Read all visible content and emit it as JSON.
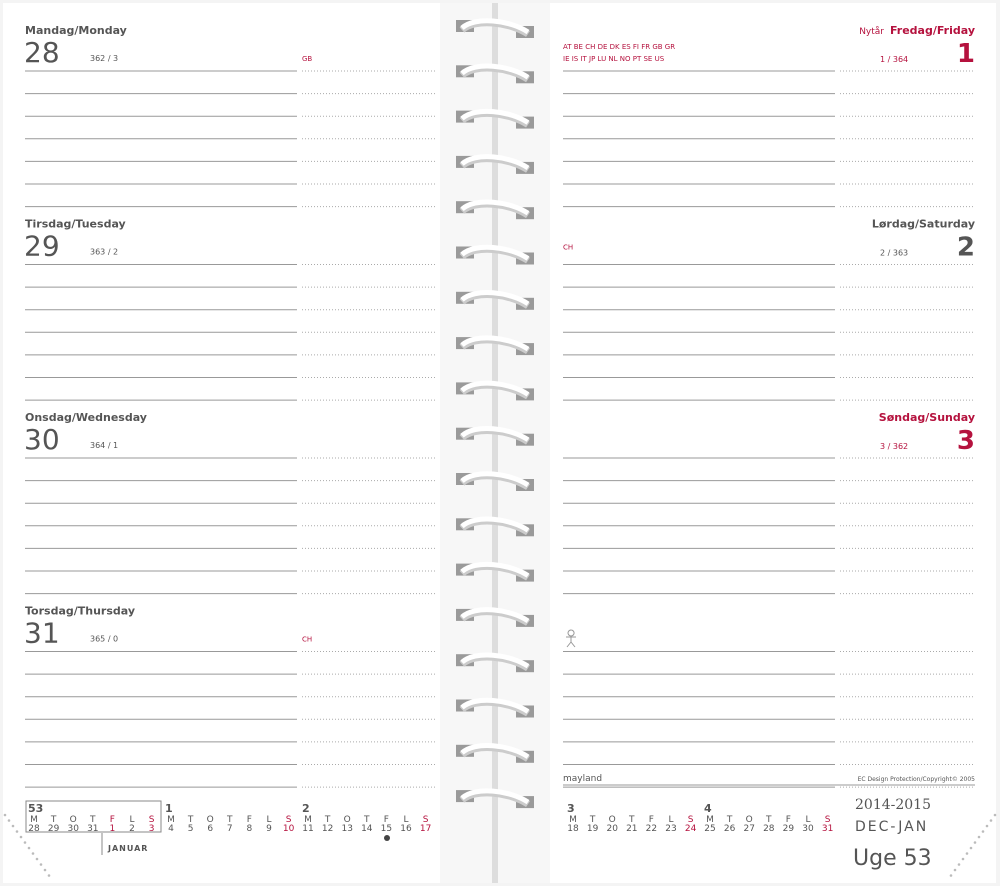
{
  "left_days": [
    {
      "name": "Mandag/Monday",
      "date": "28",
      "count": "362 / 3",
      "note": "GB"
    },
    {
      "name": "Tirsdag/Tuesday",
      "date": "29",
      "count": "363 / 2"
    },
    {
      "name": "Onsdag/Wednesday",
      "date": "30",
      "count": "364 / 1"
    },
    {
      "name": "Torsdag/Thursday",
      "date": "31",
      "count": "365 / 0",
      "note": "CH"
    }
  ],
  "right_days": [
    {
      "holiday": "Nytår",
      "name": "Fredag/Friday",
      "date": "1",
      "count": "1 / 364",
      "red": true,
      "countries": [
        "AT BE CH DE DK ES FI FR GB GR",
        "IE IS IT JP LU NL NO PT SE US"
      ]
    },
    {
      "name": "Lørdag/Saturday",
      "date": "2",
      "count": "2 / 363",
      "note": "CH"
    },
    {
      "name": "Søndag/Sunday",
      "date": "3",
      "count": "3 / 362",
      "red": true
    }
  ],
  "weekdays": [
    "M",
    "T",
    "O",
    "T",
    "F",
    "L",
    "S"
  ],
  "left_calendar": [
    {
      "week": "53",
      "dates": [
        "28",
        "29",
        "30",
        "31",
        "1",
        "2",
        "3"
      ],
      "red": [
        4,
        6
      ]
    },
    {
      "week": "1",
      "dates": [
        "4",
        "5",
        "6",
        "7",
        "8",
        "9",
        "10"
      ],
      "red": [
        6
      ]
    },
    {
      "week": "2",
      "dates": [
        "11",
        "12",
        "13",
        "14",
        "15",
        "16",
        "17"
      ],
      "red": [
        6
      ]
    }
  ],
  "right_calendar": [
    {
      "week": "3",
      "dates": [
        "18",
        "19",
        "20",
        "21",
        "22",
        "23",
        "24"
      ],
      "red": [
        6
      ]
    },
    {
      "week": "4",
      "dates": [
        "25",
        "26",
        "27",
        "28",
        "29",
        "30",
        "31"
      ],
      "red": [
        6
      ]
    }
  ],
  "month": "JANUAR",
  "brand": "mayland",
  "copyright": "EC Design Protection/Copyright© 2005",
  "years": "2014-2015",
  "months": "DEC-JAN",
  "week_label": "Uge 53"
}
